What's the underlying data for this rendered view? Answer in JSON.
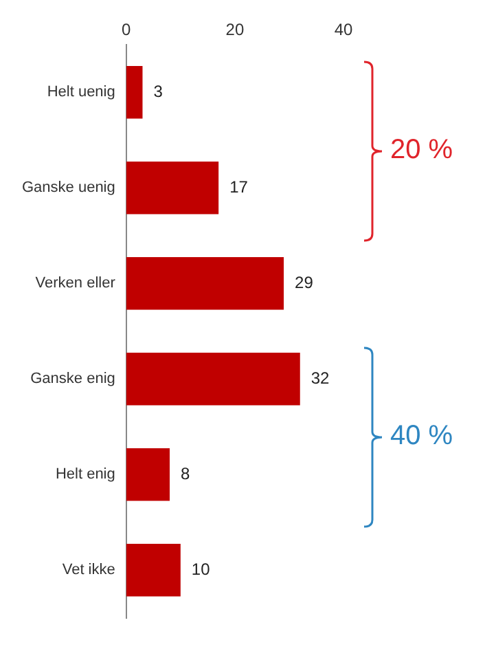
{
  "chart_data": {
    "type": "bar",
    "orientation": "horizontal",
    "categories": [
      "Helt uenig",
      "Ganske uenig",
      "Verken eller",
      "Ganske enig",
      "Helt enig",
      "Vet ikke"
    ],
    "values": [
      3,
      17,
      29,
      32,
      8,
      10
    ],
    "color": "#c00000",
    "xlim": [
      0,
      40
    ],
    "xticks": [
      0,
      20,
      40
    ],
    "grid": false,
    "legend": false,
    "data_labels": true,
    "annotations": [
      "20 %",
      "40 %"
    ]
  }
}
